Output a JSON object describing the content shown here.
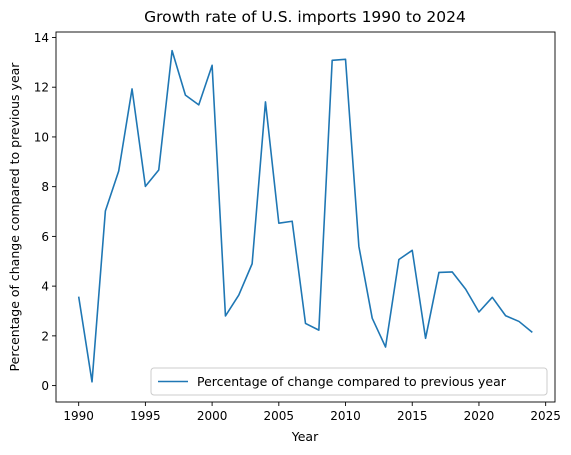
{
  "chart_data": {
    "type": "line",
    "title": "Growth rate of U.S. imports 1990 to 2024",
    "xlabel": "Year",
    "ylabel": "Percentage of change compared to previous year",
    "xlim": [
      1988.3,
      2025.7
    ],
    "ylim": [
      -0.66,
      14.22
    ],
    "xticks": [
      1990,
      1995,
      2000,
      2005,
      2010,
      2015,
      2020,
      2025
    ],
    "yticks": [
      0,
      2,
      4,
      6,
      8,
      10,
      12,
      14
    ],
    "grid": false,
    "legend_position": "lower right",
    "series": [
      {
        "name": "Percentage of change compared to previous year",
        "color": "#1f77b4",
        "x": [
          1990,
          1991,
          1992,
          1993,
          1994,
          1995,
          1996,
          1997,
          1998,
          1999,
          2000,
          2001,
          2002,
          2003,
          2004,
          2005,
          2006,
          2007,
          2008,
          2009,
          2010,
          2011,
          2012,
          2013,
          2014,
          2015,
          2016,
          2017,
          2018,
          2019,
          2020,
          2021,
          2022,
          2023,
          2024
        ],
        "y": [
          3.58,
          0.15,
          7.02,
          8.63,
          11.93,
          8.01,
          8.67,
          13.47,
          11.68,
          11.29,
          12.88,
          2.8,
          3.64,
          4.9,
          11.41,
          6.53,
          6.61,
          2.5,
          2.23,
          13.08,
          13.12,
          5.6,
          2.71,
          1.55,
          5.07,
          5.44,
          1.9,
          4.55,
          4.57,
          3.88,
          2.96,
          3.55,
          2.81,
          2.58,
          2.14
        ]
      }
    ]
  }
}
